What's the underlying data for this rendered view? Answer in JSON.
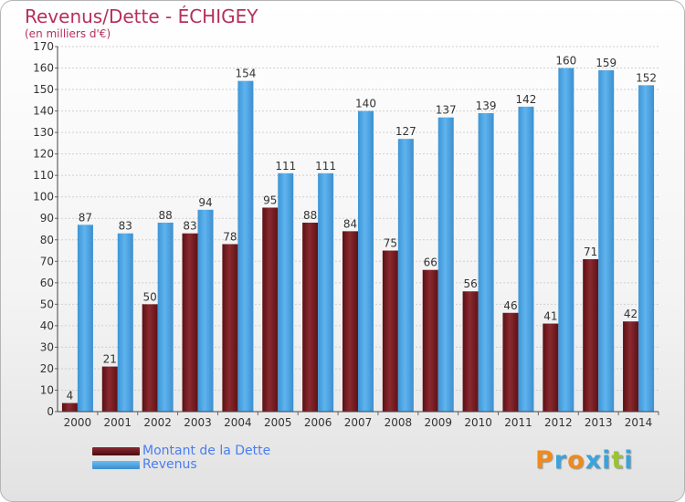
{
  "title": "Revenus/Dette - ÉCHIGEY",
  "subtitle": "(en milliers d'€)",
  "legend": {
    "debt_label": "Montant de la Dette",
    "revenue_label": "Revenus"
  },
  "brand": {
    "text": "Proxiti",
    "letter_colors": [
      "#f08a1c",
      "#3aa3dc",
      "#f08a1c",
      "#3aa3dc",
      "#3aa3dc",
      "#9ac431",
      "#3aa3dc"
    ]
  },
  "colors": {
    "debt": "#7a1f24",
    "revenue": "#4fa8e6",
    "title": "#b5305a",
    "legend_text": "#4a7df0"
  },
  "chart_data": {
    "type": "bar",
    "title": "Revenus/Dette - ÉCHIGEY",
    "ylabel": "(en milliers d'€)",
    "categories": [
      "2000",
      "2001",
      "2002",
      "2003",
      "2004",
      "2005",
      "2006",
      "2007",
      "2008",
      "2009",
      "2010",
      "2011",
      "2012",
      "2013",
      "2014"
    ],
    "series": [
      {
        "name": "Montant de la Dette",
        "values": [
          4,
          21,
          50,
          83,
          78,
          95,
          88,
          84,
          75,
          66,
          56,
          46,
          41,
          71,
          42
        ]
      },
      {
        "name": "Revenus",
        "values": [
          87,
          83,
          88,
          94,
          154,
          111,
          111,
          140,
          127,
          137,
          139,
          142,
          160,
          159,
          152
        ]
      }
    ],
    "ylim": [
      0,
      170
    ],
    "yticks": [
      0,
      10,
      20,
      30,
      40,
      50,
      60,
      70,
      80,
      90,
      100,
      110,
      120,
      130,
      140,
      150,
      160,
      170
    ],
    "grid": true,
    "legend_position": "bottom-left"
  }
}
